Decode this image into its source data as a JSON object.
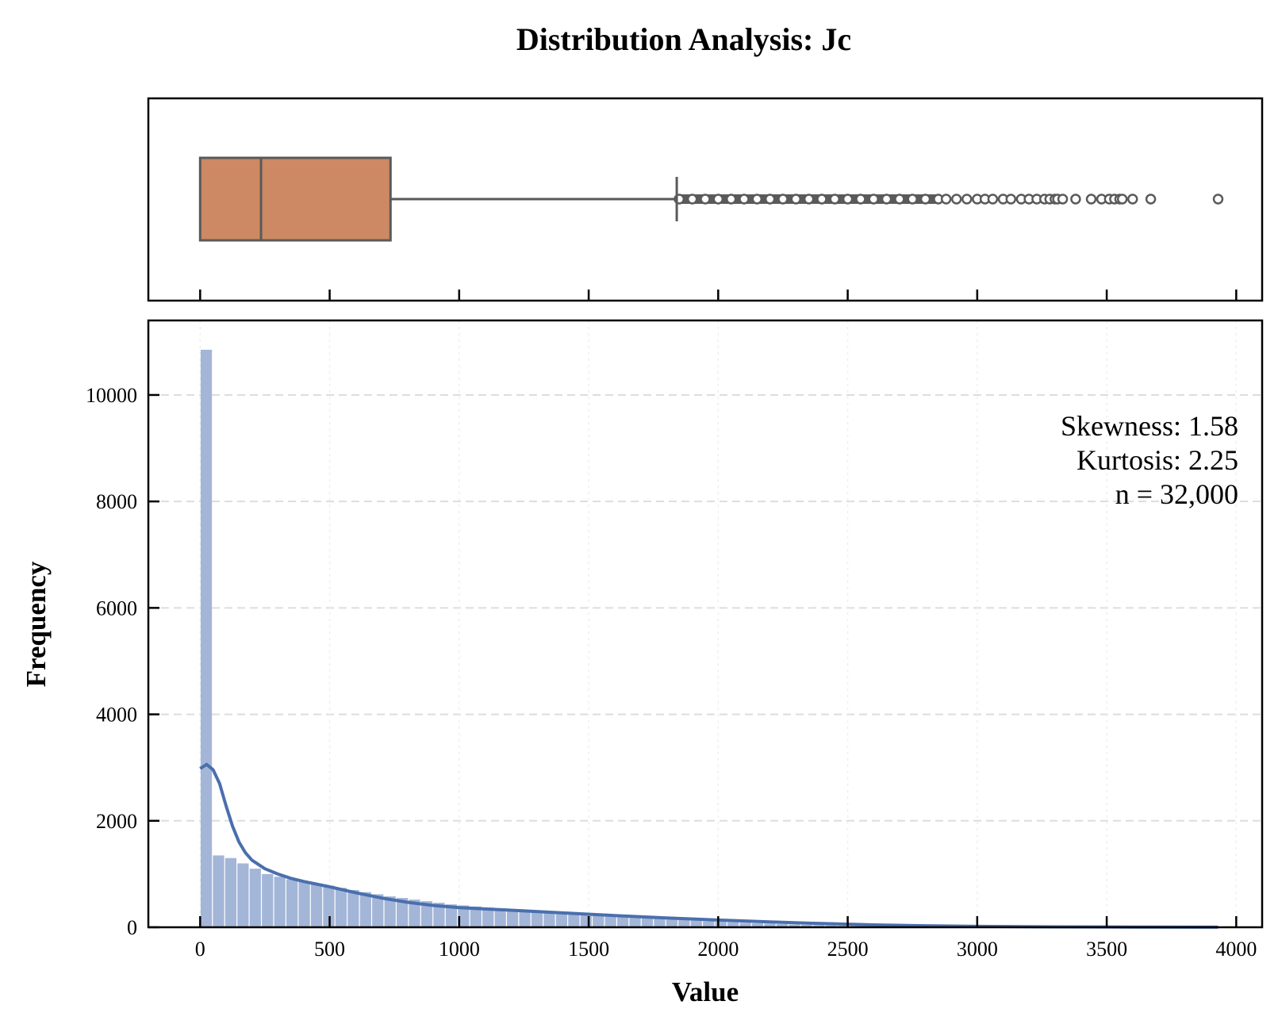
{
  "chart_data": [
    {
      "type": "box",
      "title": "Distribution Analysis: Jc",
      "box": {
        "whisker_low": 0,
        "q1": 0,
        "median": 235,
        "q3": 735,
        "whisker_high": 1840
      },
      "outliers": [
        1850,
        1900,
        1950,
        2000,
        2050,
        2100,
        2150,
        2200,
        2250,
        2300,
        2350,
        2400,
        2450,
        2500,
        2550,
        2600,
        2650,
        2700,
        2750,
        2800,
        2850,
        2880,
        2920,
        2960,
        3000,
        3030,
        3060,
        3100,
        3130,
        3170,
        3200,
        3230,
        3260,
        3280,
        3300,
        3310,
        3330,
        3380,
        3440,
        3480,
        3510,
        3530,
        3550,
        3560,
        3600,
        3670,
        3930
      ],
      "xlim": [
        -200,
        4100
      ],
      "xticks": [
        0,
        500,
        1000,
        1500,
        2000,
        2500,
        3000,
        3500,
        4000
      ],
      "colors": {
        "box_fill": "#cc8963",
        "line": "#5a5a5a"
      }
    },
    {
      "type": "bar",
      "xlabel": "Value",
      "ylabel": "Frequency",
      "xlim": [
        -200,
        4100
      ],
      "ylim": [
        0,
        11400
      ],
      "xticks": [
        0,
        500,
        1000,
        1500,
        2000,
        2500,
        3000,
        3500,
        4000
      ],
      "yticks": [
        0,
        2000,
        4000,
        6000,
        8000,
        10000
      ],
      "bin_width": 47.3,
      "bin_start": 0,
      "values": [
        10850,
        1350,
        1300,
        1200,
        1100,
        1000,
        950,
        900,
        850,
        820,
        780,
        740,
        700,
        660,
        620,
        580,
        550,
        520,
        490,
        460,
        430,
        410,
        390,
        370,
        350,
        330,
        315,
        300,
        285,
        270,
        255,
        240,
        225,
        210,
        195,
        180,
        168,
        156,
        145,
        135,
        125,
        115,
        105,
        95,
        85,
        76,
        68,
        60,
        52,
        45,
        40,
        35,
        30,
        25,
        22,
        18,
        15,
        13,
        11,
        9,
        8,
        7,
        6,
        5,
        4,
        3,
        3,
        2,
        2,
        1,
        1,
        1,
        1,
        1,
        1,
        1,
        1,
        1,
        1,
        1,
        1,
        1,
        1
      ],
      "kde": {
        "x": [
          0,
          25,
          50,
          75,
          100,
          125,
          150,
          175,
          200,
          250,
          300,
          350,
          400,
          500,
          600,
          700,
          800,
          900,
          1000,
          1200,
          1400,
          1600,
          1800,
          2000,
          2200,
          2400,
          2600,
          2800,
          3000,
          3300,
          3600,
          3930
        ],
        "y": [
          2980,
          3060,
          2960,
          2700,
          2280,
          1900,
          1600,
          1400,
          1260,
          1100,
          1000,
          920,
          860,
          760,
          650,
          550,
          470,
          410,
          370,
          320,
          270,
          220,
          175,
          135,
          100,
          70,
          45,
          28,
          16,
          8,
          4,
          2
        ]
      },
      "annotations": [
        "Skewness: 1.58",
        "Kurtosis: 2.25",
        "n = 32,000"
      ],
      "grid": true,
      "colors": {
        "bars": "#a3b6d8",
        "kde": "#4a6fad",
        "grid": "#dddddd"
      }
    }
  ]
}
